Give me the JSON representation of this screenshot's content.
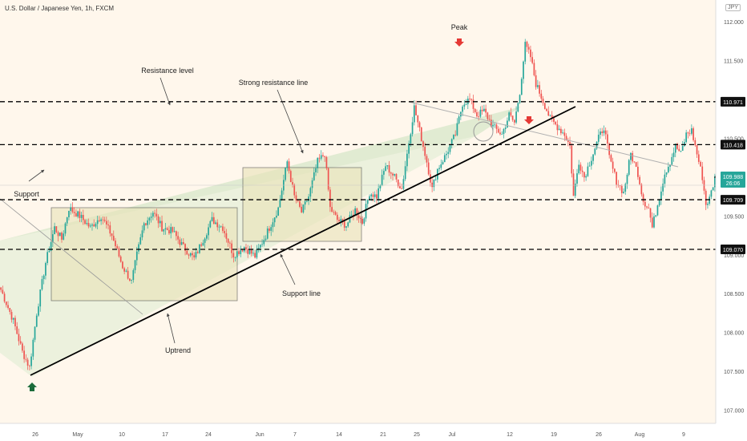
{
  "header": {
    "symbol_title": "U.S. Dollar / Japanese Yen, 1h, FXCM",
    "currency_badge": "JPY"
  },
  "chart_data": {
    "type": "candlestick",
    "y_axis": {
      "ylim": [
        106.83,
        112.28
      ],
      "tick_labels": [
        "112.000",
        "111.500",
        "111.000",
        "110.500",
        "110.000",
        "109.500",
        "109.000",
        "108.500",
        "108.000",
        "107.500",
        "107.000"
      ],
      "tick_values": [
        112.0,
        111.5,
        111.0,
        110.5,
        110.0,
        109.5,
        109.0,
        108.5,
        108.0,
        107.5,
        107.0
      ]
    },
    "x_axis": {
      "tick_labels": [
        "26",
        "May",
        "10",
        "17",
        "24",
        "Jun",
        "7",
        "14",
        "21",
        "25",
        "Jul",
        "12",
        "19",
        "26",
        "Aug",
        "9"
      ]
    },
    "price_levels": [
      {
        "value": 110.971,
        "label": "110.971"
      },
      {
        "value": 110.418,
        "label": "110.418"
      },
      {
        "value": 109.709,
        "label": "109.709"
      },
      {
        "value": 109.07,
        "label": "109.070"
      }
    ],
    "last_price": {
      "value": 109.988,
      "label": "109.988",
      "countdown": "26:06"
    },
    "anchors": [
      [
        0,
        108.55
      ],
      [
        7,
        108.15
      ],
      [
        12,
        107.75
      ],
      [
        16,
        107.55
      ],
      [
        20,
        108.25
      ],
      [
        25,
        108.9
      ],
      [
        30,
        109.35
      ],
      [
        34,
        109.2
      ],
      [
        38,
        109.6
      ],
      [
        44,
        109.5
      ],
      [
        50,
        109.35
      ],
      [
        56,
        109.5
      ],
      [
        62,
        109.25
      ],
      [
        68,
        108.85
      ],
      [
        73,
        108.65
      ],
      [
        76,
        109.0
      ],
      [
        80,
        109.4
      ],
      [
        85,
        109.55
      ],
      [
        90,
        109.35
      ],
      [
        96,
        109.3
      ],
      [
        102,
        109.1
      ],
      [
        108,
        108.95
      ],
      [
        113,
        109.2
      ],
      [
        118,
        109.45
      ],
      [
        124,
        109.35
      ],
      [
        130,
        109.0
      ],
      [
        136,
        109.1
      ],
      [
        142,
        108.98
      ],
      [
        148,
        109.25
      ],
      [
        155,
        109.6
      ],
      [
        160,
        110.2
      ],
      [
        164,
        109.75
      ],
      [
        168,
        109.55
      ],
      [
        172,
        109.75
      ],
      [
        177,
        110.2
      ],
      [
        181,
        110.3
      ],
      [
        184,
        109.6
      ],
      [
        188,
        109.45
      ],
      [
        193,
        109.38
      ],
      [
        198,
        109.58
      ],
      [
        202,
        109.42
      ],
      [
        206,
        109.8
      ],
      [
        210,
        109.75
      ],
      [
        215,
        110.15
      ],
      [
        220,
        110.0
      ],
      [
        224,
        109.85
      ],
      [
        227,
        110.3
      ],
      [
        231,
        110.9
      ],
      [
        234,
        110.6
      ],
      [
        238,
        110.2
      ],
      [
        241,
        109.85
      ],
      [
        244,
        110.1
      ],
      [
        249,
        110.3
      ],
      [
        254,
        110.55
      ],
      [
        258,
        110.95
      ],
      [
        262,
        111.0
      ],
      [
        266,
        110.8
      ],
      [
        270,
        110.85
      ],
      [
        275,
        110.65
      ],
      [
        280,
        110.55
      ],
      [
        284,
        110.8
      ],
      [
        287,
        110.7
      ],
      [
        290,
        111.1
      ],
      [
        293,
        111.7
      ],
      [
        296,
        111.55
      ],
      [
        299,
        111.2
      ],
      [
        303,
        110.98
      ],
      [
        307,
        110.75
      ],
      [
        311,
        110.65
      ],
      [
        315,
        110.55
      ],
      [
        318,
        110.4
      ],
      [
        320,
        109.75
      ],
      [
        323,
        110.2
      ],
      [
        326,
        110.0
      ],
      [
        330,
        110.25
      ],
      [
        334,
        110.5
      ],
      [
        337,
        110.65
      ],
      [
        340,
        110.25
      ],
      [
        344,
        109.95
      ],
      [
        348,
        109.8
      ],
      [
        352,
        110.3
      ],
      [
        356,
        110.05
      ],
      [
        359,
        109.7
      ],
      [
        362,
        109.6
      ],
      [
        364,
        109.35
      ],
      [
        368,
        109.75
      ],
      [
        371,
        110.05
      ],
      [
        374,
        110.2
      ],
      [
        377,
        110.4
      ],
      [
        380,
        110.3
      ],
      [
        383,
        110.55
      ],
      [
        386,
        110.6
      ],
      [
        389,
        110.3
      ],
      [
        392,
        110.0
      ],
      [
        394,
        109.65
      ],
      [
        396,
        109.72
      ],
      [
        399,
        109.99
      ]
    ],
    "projection": [
      [
        399,
        109.99
      ],
      [
        407,
        110.35
      ],
      [
        413,
        109.45
      ],
      [
        417,
        109.72
      ],
      [
        424,
        109.07
      ]
    ],
    "annotations": {
      "peak": "Peak",
      "resistance_level": "Resistance level",
      "strong_resistance_line": "Strong resistance line",
      "support": "Support",
      "support_line": "Support line",
      "uptrend": "Uptrend"
    },
    "colors": {
      "up": "#26a69a",
      "down": "#ef5350",
      "background": "#fff7ec",
      "trendline": "#000000",
      "channel_fill": "#a8d5a2",
      "box_fill": "#e9e3b8",
      "arrow_red": "#e53935",
      "arrow_green": "#1b6b3a"
    },
    "grid": false
  }
}
